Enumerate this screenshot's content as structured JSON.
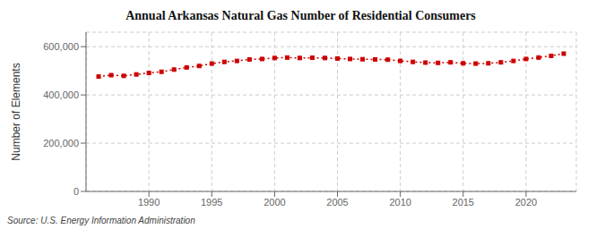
{
  "chart_data": {
    "type": "line",
    "title": "Annual Arkansas Natural Gas Number of Residential Consumers",
    "ylabel": "Number of Elements",
    "annotations": [
      "Source: U.S. Energy Information Administration"
    ],
    "x": [
      1986,
      1987,
      1988,
      1989,
      1990,
      1991,
      1992,
      1993,
      1994,
      1995,
      1996,
      1997,
      1998,
      1999,
      2000,
      2001,
      2002,
      2003,
      2004,
      2005,
      2006,
      2007,
      2008,
      2009,
      2010,
      2011,
      2012,
      2013,
      2014,
      2015,
      2016,
      2017,
      2018,
      2019,
      2020,
      2021,
      2022,
      2023
    ],
    "values": [
      476000,
      482000,
      479000,
      485000,
      491000,
      496000,
      505000,
      514000,
      520000,
      530000,
      537000,
      541000,
      547000,
      549000,
      553000,
      555000,
      553000,
      554000,
      553000,
      551000,
      549000,
      548000,
      547000,
      546000,
      541000,
      537000,
      534000,
      533000,
      535000,
      531000,
      530000,
      531000,
      535000,
      541000,
      549000,
      555000,
      562000,
      571000
    ],
    "color": "#cc0000",
    "marker": "square",
    "line_style": "dotted",
    "grid": true,
    "xlim": [
      1985,
      2024
    ],
    "xticks": [
      1990,
      1995,
      2000,
      2005,
      2010,
      2015,
      2020
    ],
    "ylim": [
      0,
      660000
    ],
    "yticks": [
      0,
      {
        "value": 200000,
        "label": "200,000"
      },
      {
        "value": 400000,
        "label": "400,000"
      },
      {
        "value": 600000,
        "label": "600,000"
      }
    ]
  }
}
